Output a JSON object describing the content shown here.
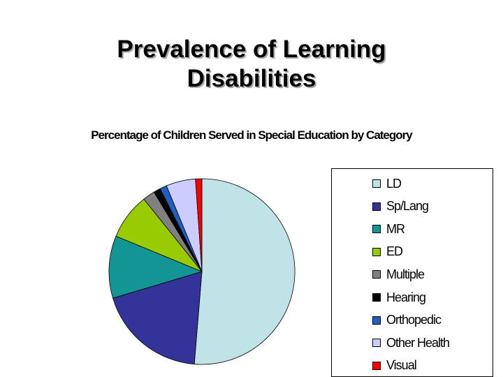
{
  "slide": {
    "title_line1": "Prevalence of Learning",
    "title_line2": "Disabilities"
  },
  "chart_data": {
    "type": "pie",
    "title": "Percentage of Children Served in Special Education by Category",
    "legend_position": "right",
    "slices": [
      {
        "label": "LD",
        "value": 51.1,
        "color": "#bfe3e6"
      },
      {
        "label": "Sp/Lang",
        "value": 19.0,
        "color": "#333399"
      },
      {
        "label": "MR",
        "value": 10.8,
        "color": "#149595"
      },
      {
        "label": "ED",
        "value": 8.0,
        "color": "#99cc00"
      },
      {
        "label": "Multiple",
        "value": 2.1,
        "color": "#808080"
      },
      {
        "label": "Hearing",
        "value": 1.2,
        "color": "#000000"
      },
      {
        "label": "Orthopedic",
        "value": 1.2,
        "color": "#1f5fbf"
      },
      {
        "label": "Other Health",
        "value": 5.1,
        "color": "#ccccff"
      },
      {
        "label": "Visual",
        "value": 1.1,
        "color": "#ff0000"
      }
    ]
  }
}
